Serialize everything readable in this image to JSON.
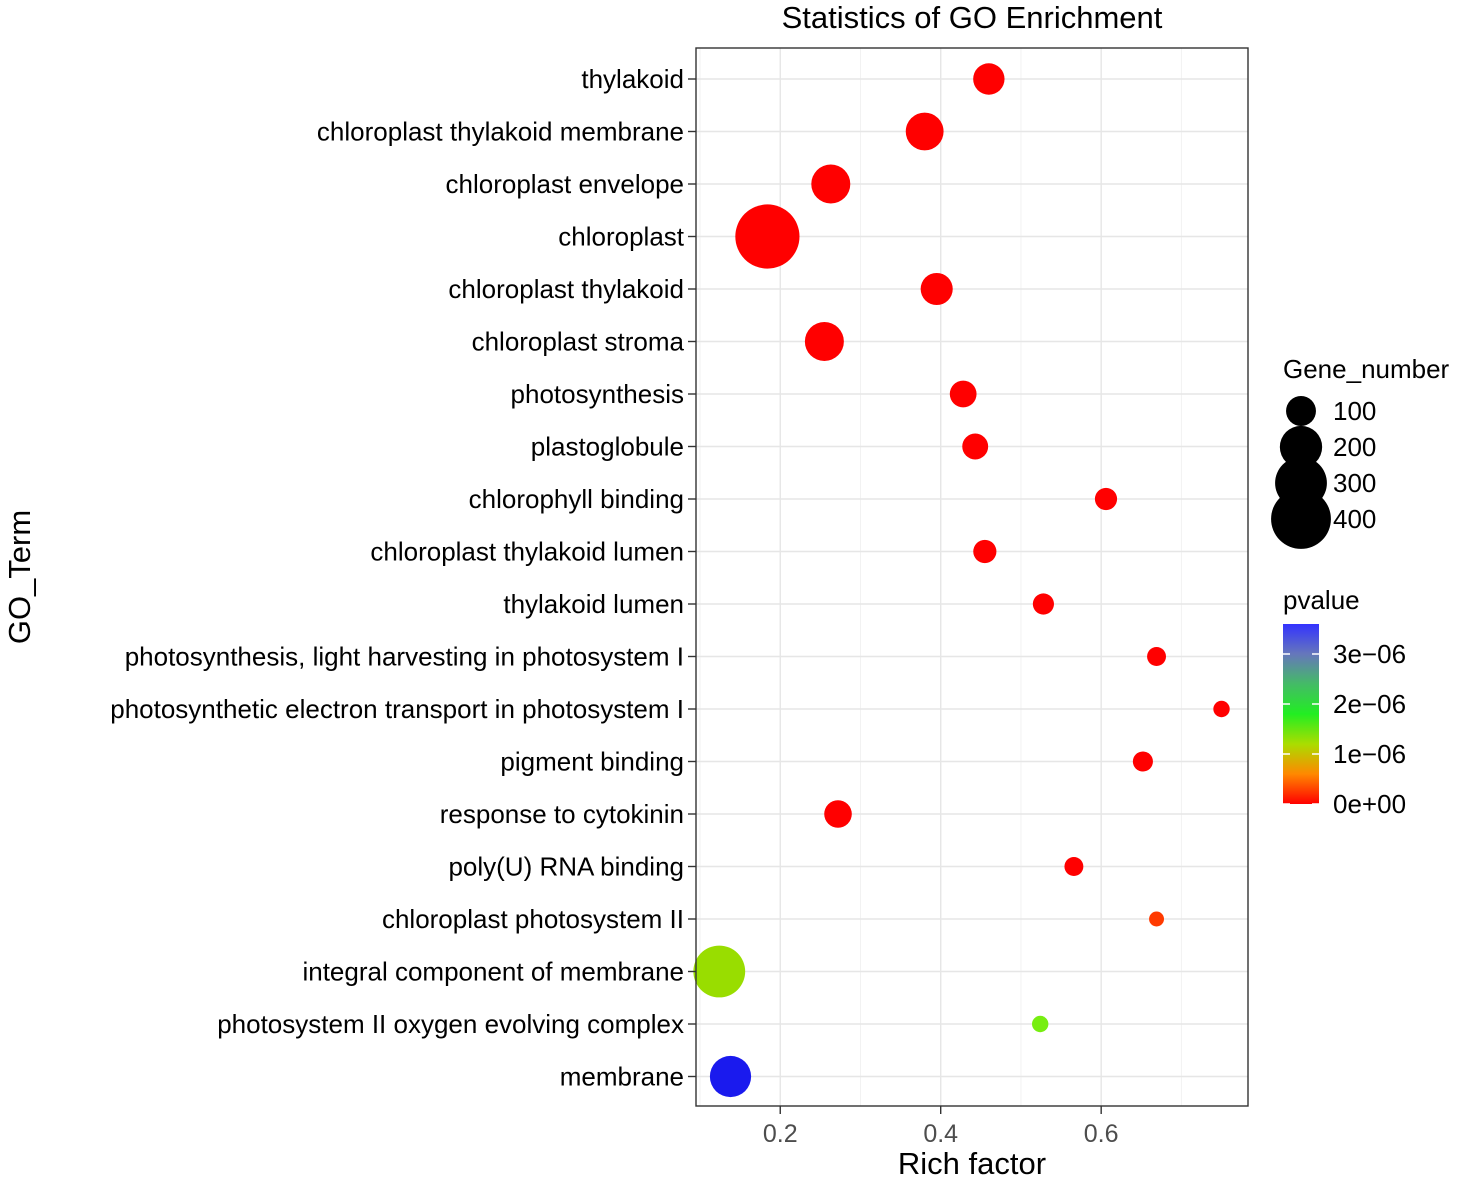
{
  "chart_data": {
    "type": "scatter",
    "title": "Statistics of GO Enrichment",
    "xlabel": "Rich factor",
    "ylabel": "GO_Term",
    "xlim": [
      0.095,
      0.783
    ],
    "x_ticks": [
      0.2,
      0.4,
      0.6
    ],
    "x_tick_labels": [
      "0.2",
      "0.4",
      "0.6"
    ],
    "grid": true,
    "points": [
      {
        "term": "thylakoid",
        "rich_factor": 0.46,
        "gene_number": 110,
        "pvalue": 0.0,
        "color": "#ff0000"
      },
      {
        "term": "chloroplast thylakoid membrane",
        "rich_factor": 0.38,
        "gene_number": 160,
        "pvalue": 0.0,
        "color": "#ff0000"
      },
      {
        "term": "chloroplast envelope",
        "rich_factor": 0.263,
        "gene_number": 170,
        "pvalue": 0.0,
        "color": "#ff0000"
      },
      {
        "term": "chloroplast",
        "rich_factor": 0.184,
        "gene_number": 460,
        "pvalue": 0.0,
        "color": "#ff0000"
      },
      {
        "term": "chloroplast thylakoid",
        "rich_factor": 0.395,
        "gene_number": 115,
        "pvalue": 0.0,
        "color": "#ff0000"
      },
      {
        "term": "chloroplast stroma",
        "rich_factor": 0.255,
        "gene_number": 170,
        "pvalue": 0.0,
        "color": "#ff0000"
      },
      {
        "term": "photosynthesis",
        "rich_factor": 0.428,
        "gene_number": 80,
        "pvalue": 0.0,
        "color": "#ff0000"
      },
      {
        "term": "plastoglobule",
        "rich_factor": 0.443,
        "gene_number": 75,
        "pvalue": 0.0,
        "color": "#ff0000"
      },
      {
        "term": "chlorophyll binding",
        "rich_factor": 0.606,
        "gene_number": 55,
        "pvalue": 0.0,
        "color": "#ff0000"
      },
      {
        "term": "chloroplast thylakoid lumen",
        "rich_factor": 0.455,
        "gene_number": 60,
        "pvalue": 0.0,
        "color": "#ff0000"
      },
      {
        "term": "thylakoid lumen",
        "rich_factor": 0.528,
        "gene_number": 50,
        "pvalue": 0.0,
        "color": "#ff0000"
      },
      {
        "term": "photosynthesis, light harvesting in photosystem I",
        "rich_factor": 0.669,
        "gene_number": 40,
        "pvalue": 0.0,
        "color": "#ff0000"
      },
      {
        "term": "photosynthetic electron transport in photosystem I",
        "rich_factor": 0.75,
        "gene_number": 30,
        "pvalue": 0.0,
        "color": "#ff0000"
      },
      {
        "term": "pigment binding",
        "rich_factor": 0.652,
        "gene_number": 45,
        "pvalue": 0.0,
        "color": "#ff0000"
      },
      {
        "term": "response to cytokinin",
        "rich_factor": 0.272,
        "gene_number": 85,
        "pvalue": 0.0,
        "color": "#ff0000"
      },
      {
        "term": "poly(U) RNA binding",
        "rich_factor": 0.566,
        "gene_number": 40,
        "pvalue": 0.0,
        "color": "#ff0000"
      },
      {
        "term": "chloroplast photosystem II",
        "rich_factor": 0.669,
        "gene_number": 25,
        "pvalue": 1e-07,
        "color": "#ff3a00"
      },
      {
        "term": "integral component of membrane",
        "rich_factor": 0.124,
        "gene_number": 300,
        "pvalue": 1.3e-06,
        "color": "#99dd00"
      },
      {
        "term": "photosystem II oxygen evolving complex",
        "rich_factor": 0.524,
        "gene_number": 30,
        "pvalue": 1.5e-06,
        "color": "#77ee11"
      },
      {
        "term": "membrane",
        "rich_factor": 0.138,
        "gene_number": 190,
        "pvalue": 3.5e-06,
        "color": "#1a1aee"
      }
    ],
    "legend_size": {
      "title": "Gene_number",
      "values": [
        100,
        200,
        300,
        400
      ],
      "labels": [
        "100",
        "200",
        "300",
        "400"
      ]
    },
    "legend_color": {
      "title": "pvalue",
      "min": 0,
      "max": 3.6e-06,
      "ticks": [
        0,
        1e-06,
        2e-06,
        3e-06
      ],
      "tick_labels": [
        "0e+00",
        "1e−06",
        "2e−06",
        "3e−06"
      ],
      "gradient_colors": [
        "#ff0000",
        "#ff8800",
        "#aadd00",
        "#22ee22",
        "#44bb66",
        "#6677bb",
        "#3333ff"
      ],
      "low_color": "#ff0000",
      "high_color": "#2222ff"
    },
    "legend_position": "right"
  }
}
